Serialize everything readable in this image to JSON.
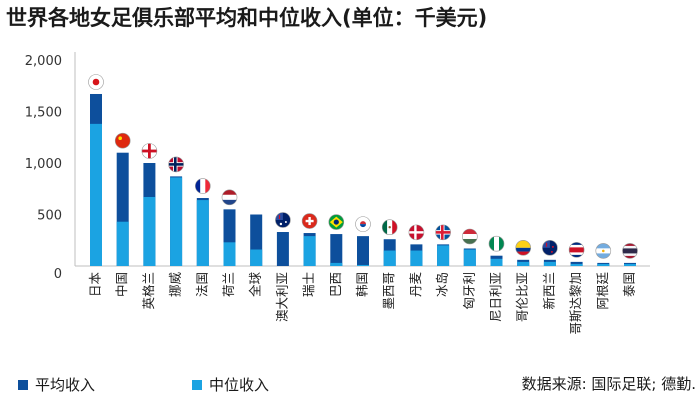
{
  "colors": {
    "average": "#0d4f9c",
    "median": "#1ba3e2",
    "axis": "#bfbfbf"
  },
  "chart_data": {
    "type": "bar",
    "title": "世界各地女足俱乐部平均和中位收入(单位：千美元)",
    "ylim": [
      0,
      2000
    ],
    "yticks": [
      0,
      500,
      1000,
      1500,
      2000
    ],
    "ytick_labels": [
      "0",
      "500",
      "1,000",
      "1,500",
      "2,000"
    ],
    "categories": [
      "日本",
      "中国",
      "英格兰",
      "挪威",
      "法国",
      "荷兰",
      "全球",
      "澳大利亚",
      "瑞士",
      "巴西",
      "韩国",
      "墨西哥",
      "丹麦",
      "冰岛",
      "匈牙利",
      "尼日利亚",
      "哥伦比亚",
      "新西兰",
      "哥斯达黎加",
      "阿根廷",
      "泰国"
    ],
    "flags": [
      "japan",
      "china",
      "england",
      "norway",
      "france",
      "netherlands",
      "",
      "australia",
      "switzerland",
      "brazil",
      "korea",
      "mexico",
      "denmark",
      "iceland",
      "hungary",
      "nigeria",
      "colombia",
      "newzealand",
      "costarica",
      "argentina",
      "thailand"
    ],
    "series": [
      {
        "name": "平均收入",
        "values": [
          1670,
          1100,
          1000,
          870,
          660,
          550,
          500,
          330,
          320,
          310,
          290,
          260,
          210,
          210,
          170,
          100,
          60,
          60,
          40,
          30,
          30
        ]
      },
      {
        "name": "中位收入",
        "values": [
          1380,
          430,
          670,
          860,
          640,
          230,
          160,
          0,
          290,
          30,
          10,
          150,
          150,
          200,
          160,
          70,
          40,
          40,
          20,
          20,
          20
        ]
      }
    ],
    "legend_position": "bottom-left",
    "source": "数据来源: 国际足联; 德勤."
  }
}
